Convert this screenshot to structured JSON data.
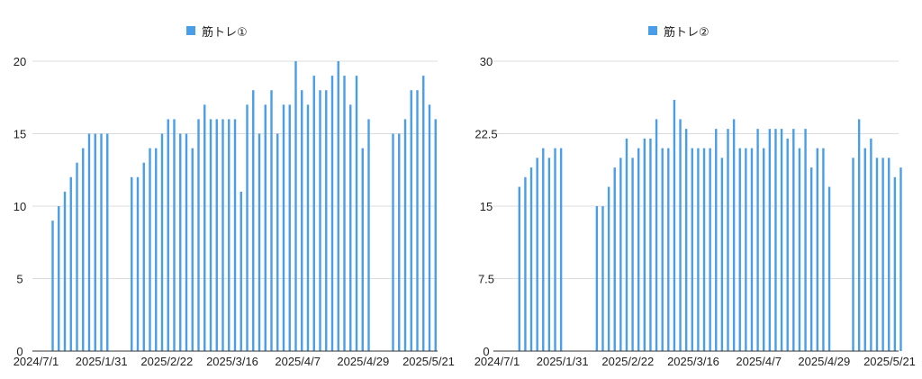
{
  "chart_data": [
    {
      "type": "bar",
      "title": "",
      "xlabel": "",
      "ylabel": "",
      "ylim": [
        0,
        20
      ],
      "yticks": [
        "0",
        "5",
        "10",
        "15",
        "20"
      ],
      "xtick_labels": [
        "2024/7/1",
        "2025/1/31",
        "2025/2/22",
        "2025/3/16",
        "2025/4/7",
        "2025/4/29",
        "2025/5/21"
      ],
      "legend": "top",
      "grid": true,
      "color": "#4a9ee8",
      "series": [
        {
          "name": "筋トレ①",
          "values": [
            9,
            10,
            11,
            12,
            13,
            14,
            15,
            15,
            15,
            15,
            null,
            null,
            null,
            12,
            12,
            13,
            14,
            14,
            15,
            16,
            16,
            15,
            15,
            14,
            16,
            17,
            16,
            16,
            16,
            16,
            16,
            11,
            17,
            18,
            15,
            17,
            18,
            15,
            17,
            17,
            20,
            18,
            17,
            19,
            18,
            18,
            19,
            20,
            19,
            17,
            19,
            14,
            16,
            null,
            null,
            null,
            15,
            15,
            16,
            18,
            18,
            19,
            17,
            16
          ]
        }
      ]
    },
    {
      "type": "bar",
      "title": "",
      "xlabel": "",
      "ylabel": "",
      "ylim": [
        0,
        30
      ],
      "yticks": [
        "0",
        "7.5",
        "15",
        "22.5",
        "30"
      ],
      "xtick_labels": [
        "2024/7/1",
        "2025/1/31",
        "2025/2/22",
        "2025/3/16",
        "2025/4/7",
        "2025/4/29",
        "2025/5/21"
      ],
      "legend": "top",
      "grid": true,
      "color": "#4a9ee8",
      "series": [
        {
          "name": "筋トレ②",
          "values": [
            17,
            18,
            19,
            20,
            21,
            20,
            21,
            21,
            null,
            null,
            null,
            null,
            null,
            15,
            15,
            17,
            19,
            20,
            22,
            20,
            21,
            22,
            22,
            24,
            21,
            21,
            26,
            24,
            23,
            21,
            21,
            21,
            21,
            23,
            20,
            23,
            24,
            21,
            21,
            21,
            23,
            21,
            23,
            23,
            23,
            22,
            23,
            21,
            23,
            19,
            21,
            21,
            17,
            null,
            null,
            null,
            20,
            24,
            21,
            22,
            20,
            20,
            20,
            18,
            19
          ]
        }
      ]
    }
  ]
}
